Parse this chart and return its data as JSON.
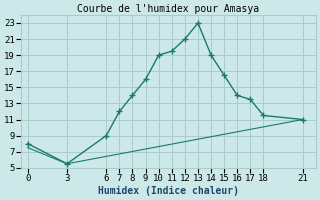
{
  "title": "Courbe de l'humidex pour Amasya",
  "xlabel": "Humidex (Indice chaleur)",
  "bg_color": "#cce8e8",
  "grid_color": "#aacccc",
  "line_color": "#1a7a6a",
  "series1_x": [
    0,
    3,
    6,
    7,
    8,
    9,
    10,
    11,
    12,
    13,
    14,
    15,
    16,
    17,
    18,
    21
  ],
  "series1_y": [
    8,
    5.5,
    9,
    12,
    14,
    16,
    19,
    19.5,
    21,
    23,
    19,
    16.5,
    14,
    13.5,
    11.5,
    11
  ],
  "series2_x": [
    0,
    3,
    21
  ],
  "series2_y": [
    7.5,
    5.5,
    11
  ],
  "xlim": [
    -0.5,
    22
  ],
  "ylim": [
    5,
    24
  ],
  "xticks": [
    0,
    3,
    6,
    7,
    8,
    9,
    10,
    11,
    12,
    13,
    14,
    15,
    16,
    17,
    18,
    21
  ],
  "yticks": [
    5,
    7,
    9,
    11,
    13,
    15,
    17,
    19,
    21,
    23
  ],
  "title_fontsize": 7,
  "label_fontsize": 7,
  "tick_fontsize": 6.5
}
